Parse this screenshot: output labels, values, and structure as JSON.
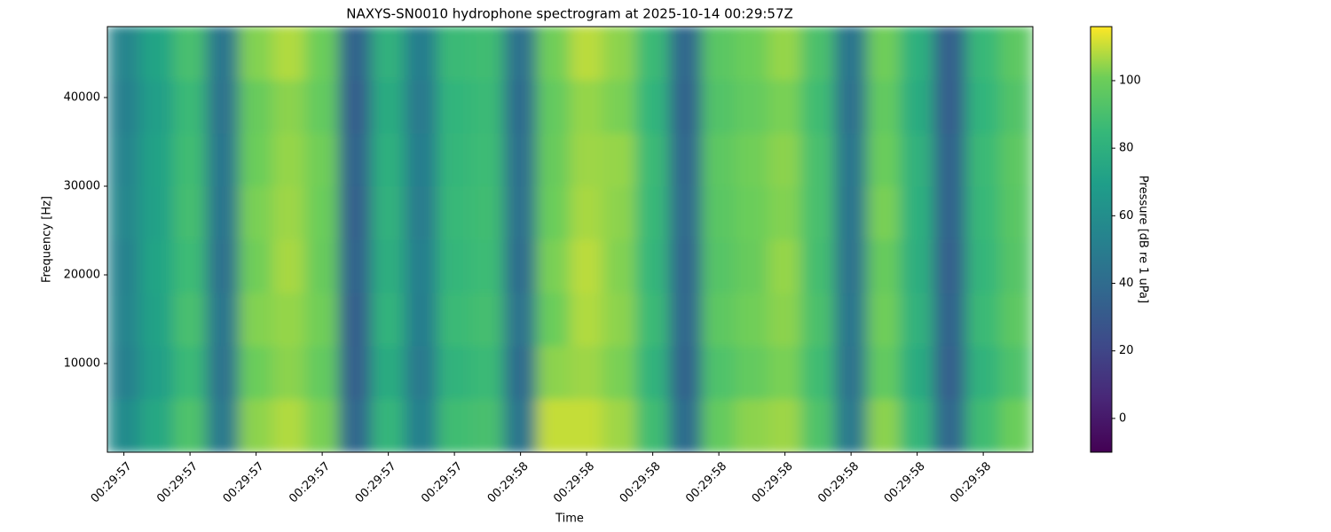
{
  "chart_data": {
    "type": "heatmap",
    "title": "NAXYS-SN0010 hydrophone spectrogram at 2025-10-14 00:29:57Z",
    "x_label": "Time",
    "y_label": "Frequency [Hz]",
    "colorbar_label": "Pressure [dB re 1 uPa]",
    "colormap": "viridis",
    "xlim": [
      57.375,
      58.775
    ],
    "ylim": [
      0,
      48000
    ],
    "clim": [
      -10,
      116
    ],
    "xticks": [
      {
        "value": 57.4,
        "label": "00:29:57"
      },
      {
        "value": 57.5,
        "label": "00:29:57"
      },
      {
        "value": 57.6,
        "label": "00:29:57"
      },
      {
        "value": 57.7,
        "label": "00:29:57"
      },
      {
        "value": 57.8,
        "label": "00:29:57"
      },
      {
        "value": 57.9,
        "label": "00:29:57"
      },
      {
        "value": 58.0,
        "label": "00:29:58"
      },
      {
        "value": 58.1,
        "label": "00:29:58"
      },
      {
        "value": 58.2,
        "label": "00:29:58"
      },
      {
        "value": 58.3,
        "label": "00:29:58"
      },
      {
        "value": 58.4,
        "label": "00:29:58"
      },
      {
        "value": 58.5,
        "label": "00:29:58"
      },
      {
        "value": 58.6,
        "label": "00:29:58"
      },
      {
        "value": 58.7,
        "label": "00:29:58"
      }
    ],
    "yticks": [
      10000,
      20000,
      30000,
      40000
    ],
    "cticks": [
      0,
      20,
      40,
      60,
      80,
      100
    ],
    "x": [
      57.4,
      57.45,
      57.5,
      57.55,
      57.6,
      57.65,
      57.7,
      57.75,
      57.8,
      57.85,
      57.9,
      57.95,
      58.0,
      58.05,
      58.1,
      58.15,
      58.2,
      58.25,
      58.3,
      58.35,
      58.4,
      58.45,
      58.5,
      58.55,
      58.6,
      58.65,
      58.7,
      58.75
    ],
    "y": [
      3000,
      9000,
      15000,
      21000,
      27000,
      33000,
      39000,
      45000
    ],
    "z": [
      [
        58,
        75,
        92,
        48,
        104,
        108,
        102,
        38,
        84,
        52,
        88,
        90,
        45,
        110,
        110,
        106,
        88,
        40,
        98,
        104,
        106,
        92,
        48,
        104,
        84,
        38,
        88,
        100
      ],
      [
        52,
        70,
        86,
        44,
        100,
        104,
        98,
        34,
        78,
        48,
        82,
        86,
        40,
        104,
        106,
        102,
        82,
        36,
        92,
        98,
        102,
        88,
        44,
        98,
        78,
        34,
        82,
        92
      ],
      [
        54,
        72,
        90,
        46,
        103,
        105,
        101,
        33,
        82,
        50,
        86,
        89,
        44,
        100,
        108,
        104,
        86,
        38,
        96,
        101,
        104,
        91,
        46,
        101,
        81,
        36,
        86,
        96
      ],
      [
        53,
        73,
        87,
        43,
        101,
        107,
        99,
        36,
        79,
        51,
        84,
        87,
        41,
        102,
        109,
        103,
        84,
        37,
        94,
        99,
        105,
        89,
        44,
        99,
        79,
        34,
        84,
        94
      ],
      [
        56,
        71,
        89,
        45,
        102,
        106,
        100,
        34,
        81,
        49,
        85,
        88,
        43,
        100,
        107,
        104,
        85,
        39,
        95,
        100,
        103,
        90,
        45,
        102,
        80,
        35,
        85,
        95
      ],
      [
        54,
        72,
        88,
        46,
        100,
        105,
        101,
        35,
        80,
        50,
        84,
        87,
        42,
        99,
        106,
        105,
        86,
        38,
        96,
        101,
        104,
        90,
        46,
        100,
        81,
        36,
        86,
        96
      ],
      [
        52,
        70,
        86,
        44,
        99,
        104,
        98,
        33,
        78,
        48,
        83,
        86,
        40,
        98,
        105,
        102,
        83,
        36,
        93,
        98,
        102,
        88,
        43,
        98,
        78,
        33,
        83,
        93
      ],
      [
        55,
        73,
        90,
        46,
        103,
        108,
        100,
        35,
        81,
        50,
        86,
        88,
        43,
        101,
        109,
        104,
        86,
        38,
        95,
        100,
        105,
        91,
        45,
        101,
        80,
        34,
        85,
        96
      ]
    ]
  }
}
